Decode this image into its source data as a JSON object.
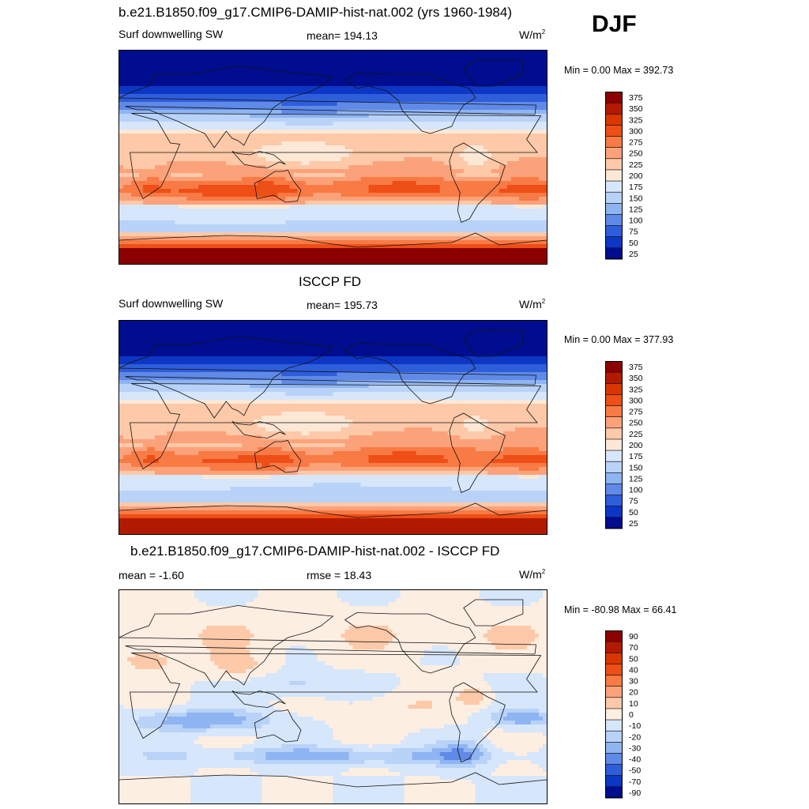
{
  "season": "DJF",
  "panels": [
    {
      "title": "b.e21.B1850.f09_g17.CMIP6-DAMIP-hist-nat.002 (yrs 1960-1984)",
      "left_label": "Surf downwelling SW",
      "center_label": "mean= 194.13",
      "units": "W/m",
      "units_sup": "2",
      "minmax": "Min =   0.00 Max = 392.73",
      "levels": [
        "375",
        "350",
        "325",
        "300",
        "275",
        "250",
        "225",
        "200",
        "175",
        "150",
        "125",
        "100",
        "75",
        "50",
        "25"
      ],
      "colors": [
        "#8b0000",
        "#b21a00",
        "#d93600",
        "#ee4f16",
        "#f87a45",
        "#fca27a",
        "#fdc9a8",
        "#fde8d6",
        "#d6e6fb",
        "#b8d2f8",
        "#8fb4f2",
        "#5f8ae8",
        "#2f5edb",
        "#0d36c4",
        "#000d8f"
      ],
      "field": "model"
    },
    {
      "title": "ISCCP FD",
      "left_label": "Surf downwelling SW",
      "center_label": "mean= 195.73",
      "units": "W/m",
      "units_sup": "2",
      "minmax": "Min =   0.00 Max = 377.93",
      "levels": [
        "375",
        "350",
        "325",
        "300",
        "275",
        "250",
        "225",
        "200",
        "175",
        "150",
        "125",
        "100",
        "75",
        "50",
        "25"
      ],
      "colors": [
        "#8b0000",
        "#b21a00",
        "#d93600",
        "#ee4f16",
        "#f87a45",
        "#fca27a",
        "#fdc9a8",
        "#fde8d6",
        "#d6e6fb",
        "#b8d2f8",
        "#8fb4f2",
        "#5f8ae8",
        "#2f5edb",
        "#0d36c4",
        "#000d8f"
      ],
      "field": "obs"
    },
    {
      "title": "b.e21.B1850.f09_g17.CMIP6-DAMIP-hist-nat.002 - ISCCP FD",
      "left_label": "mean =  -1.60",
      "center_label": "rmse =  18.43",
      "units": "W/m",
      "units_sup": "2",
      "minmax": "Min = -80.98 Max =  66.41",
      "levels": [
        "90",
        "70",
        "50",
        "40",
        "30",
        "20",
        "10",
        "0",
        "-10",
        "-20",
        "-30",
        "-40",
        "-50",
        "-70",
        "-90"
      ],
      "colors": [
        "#8b0000",
        "#b21a00",
        "#d93600",
        "#ee4f16",
        "#f87a45",
        "#fca27a",
        "#fdc9a8",
        "#fdeee2",
        "#d6e6fb",
        "#b8d2f8",
        "#8fb4f2",
        "#5f8ae8",
        "#2f5edb",
        "#0d36c4",
        "#000d8f"
      ],
      "field": "diff"
    }
  ],
  "chart_data": [
    {
      "type": "heatmap",
      "title": "b.e21.B1850.f09_g17.CMIP6-DAMIP-hist-nat.002 (yrs 1960-1984)",
      "variable": "Surf downwelling SW",
      "units": "W/m2",
      "mean": 194.13,
      "min": 0.0,
      "max": 392.73,
      "contour_levels": [
        25,
        50,
        75,
        100,
        125,
        150,
        175,
        200,
        225,
        250,
        275,
        300,
        325,
        350,
        375
      ],
      "x_range": [
        0,
        360
      ],
      "y_range": [
        -90,
        90
      ]
    },
    {
      "type": "heatmap",
      "title": "ISCCP FD",
      "variable": "Surf downwelling SW",
      "units": "W/m2",
      "mean": 195.73,
      "min": 0.0,
      "max": 377.93,
      "contour_levels": [
        25,
        50,
        75,
        100,
        125,
        150,
        175,
        200,
        225,
        250,
        275,
        300,
        325,
        350,
        375
      ],
      "x_range": [
        0,
        360
      ],
      "y_range": [
        -90,
        90
      ]
    },
    {
      "type": "heatmap",
      "title": "b.e21.B1850.f09_g17.CMIP6-DAMIP-hist-nat.002 - ISCCP FD",
      "units": "W/m2",
      "mean": -1.6,
      "rmse": 18.43,
      "min": -80.98,
      "max": 66.41,
      "contour_levels": [
        -90,
        -70,
        -50,
        -40,
        -30,
        -20,
        -10,
        0,
        10,
        20,
        30,
        40,
        50,
        70,
        90
      ],
      "x_range": [
        0,
        360
      ],
      "y_range": [
        -90,
        90
      ]
    }
  ]
}
